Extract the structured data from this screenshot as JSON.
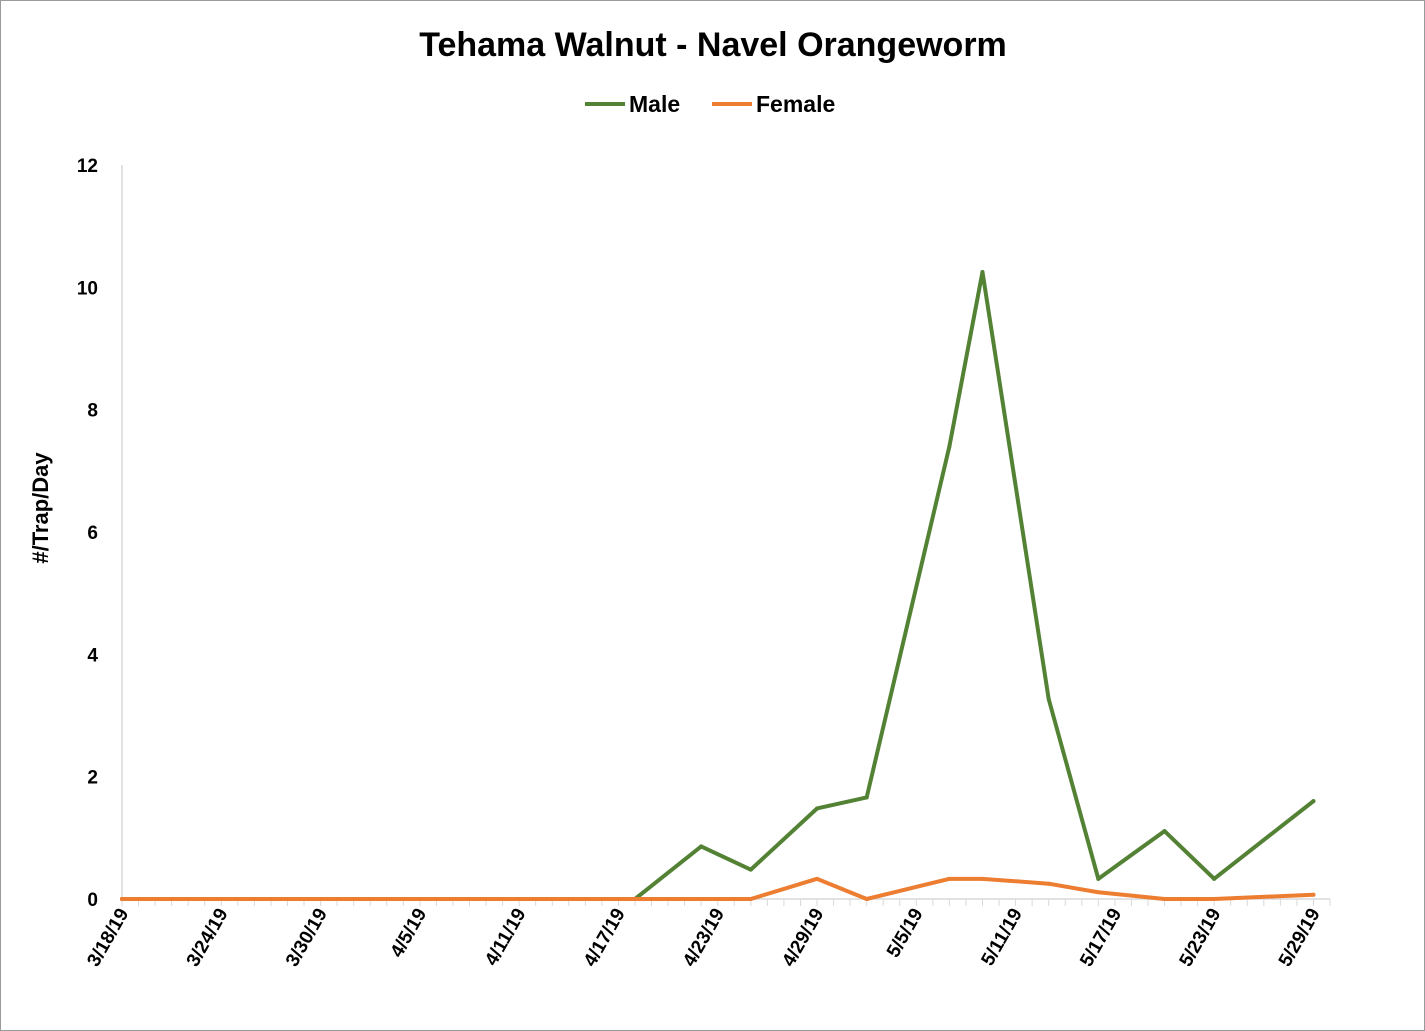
{
  "chart_data": {
    "type": "line",
    "title": "Tehama Walnut - Navel Orangeworm",
    "xlabel": "",
    "ylabel": "#/Trap/Day",
    "x_start": "2019-03-18",
    "x_end": "2019-05-30",
    "ylim": [
      0,
      12
    ],
    "y_ticks": [
      0,
      2,
      4,
      6,
      8,
      10,
      12
    ],
    "x_tick_labels": [
      "3/18/19",
      "3/24/19",
      "3/30/19",
      "4/5/19",
      "4/11/19",
      "4/17/19",
      "4/23/19",
      "4/29/19",
      "5/5/19",
      "5/11/19",
      "5/17/19",
      "5/23/19",
      "5/29/19"
    ],
    "x_tick_dates": [
      "2019-03-18",
      "2019-03-24",
      "2019-03-30",
      "2019-04-05",
      "2019-04-11",
      "2019-04-17",
      "2019-04-23",
      "2019-04-29",
      "2019-05-05",
      "2019-05-11",
      "2019-05-17",
      "2019-05-23",
      "2019-05-29"
    ],
    "grid": false,
    "legend_position": "top-center",
    "series": [
      {
        "name": "Male",
        "color": "#548235",
        "points": [
          {
            "date": "2019-03-18",
            "value": 0
          },
          {
            "date": "2019-04-18",
            "value": 0
          },
          {
            "date": "2019-04-22",
            "value": 0.86
          },
          {
            "date": "2019-04-25",
            "value": 0.48
          },
          {
            "date": "2019-04-29",
            "value": 1.48
          },
          {
            "date": "2019-05-02",
            "value": 1.66
          },
          {
            "date": "2019-05-07",
            "value": 7.4
          },
          {
            "date": "2019-05-09",
            "value": 10.25
          },
          {
            "date": "2019-05-13",
            "value": 3.27
          },
          {
            "date": "2019-05-16",
            "value": 0.33
          },
          {
            "date": "2019-05-20",
            "value": 1.11
          },
          {
            "date": "2019-05-23",
            "value": 0.33
          },
          {
            "date": "2019-05-29",
            "value": 1.6
          }
        ]
      },
      {
        "name": "Female",
        "color": "#ED7D31",
        "points": [
          {
            "date": "2019-03-18",
            "value": 0
          },
          {
            "date": "2019-04-25",
            "value": 0
          },
          {
            "date": "2019-04-29",
            "value": 0.33
          },
          {
            "date": "2019-05-02",
            "value": 0
          },
          {
            "date": "2019-05-07",
            "value": 0.33
          },
          {
            "date": "2019-05-09",
            "value": 0.33
          },
          {
            "date": "2019-05-13",
            "value": 0.25
          },
          {
            "date": "2019-05-16",
            "value": 0.11
          },
          {
            "date": "2019-05-20",
            "value": 0
          },
          {
            "date": "2019-05-23",
            "value": 0
          },
          {
            "date": "2019-05-29",
            "value": 0.07
          }
        ]
      }
    ]
  }
}
